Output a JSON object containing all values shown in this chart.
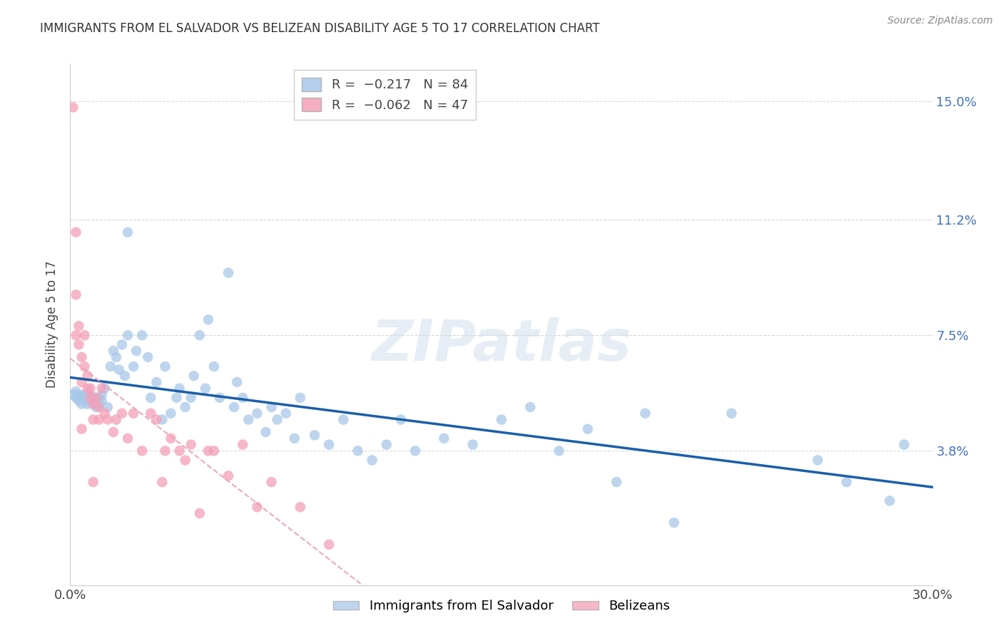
{
  "title": "IMMIGRANTS FROM EL SALVADOR VS BELIZEAN DISABILITY AGE 5 TO 17 CORRELATION CHART",
  "source": "Source: ZipAtlas.com",
  "ylabel": "Disability Age 5 to 17",
  "xlim": [
    0.0,
    0.3
  ],
  "ylim": [
    -0.005,
    0.162
  ],
  "ytick_labels": [
    "3.8%",
    "7.5%",
    "11.2%",
    "15.0%"
  ],
  "ytick_values": [
    0.038,
    0.075,
    0.112,
    0.15
  ],
  "color_blue": "#a8c8e8",
  "color_pink": "#f4a0b8",
  "color_blue_line": "#1a5fa8",
  "color_pink_line": "#e8a0b8",
  "watermark": "ZIPatlas",
  "blue_x": [
    0.001,
    0.002,
    0.002,
    0.003,
    0.003,
    0.004,
    0.004,
    0.005,
    0.005,
    0.006,
    0.006,
    0.007,
    0.007,
    0.008,
    0.008,
    0.009,
    0.009,
    0.01,
    0.01,
    0.011,
    0.011,
    0.012,
    0.013,
    0.014,
    0.015,
    0.016,
    0.017,
    0.018,
    0.019,
    0.02,
    0.022,
    0.023,
    0.025,
    0.027,
    0.028,
    0.03,
    0.032,
    0.033,
    0.035,
    0.037,
    0.038,
    0.04,
    0.042,
    0.043,
    0.045,
    0.047,
    0.048,
    0.05,
    0.052,
    0.055,
    0.057,
    0.058,
    0.06,
    0.062,
    0.065,
    0.068,
    0.07,
    0.072,
    0.075,
    0.078,
    0.08,
    0.085,
    0.09,
    0.095,
    0.1,
    0.105,
    0.11,
    0.115,
    0.12,
    0.13,
    0.14,
    0.15,
    0.16,
    0.17,
    0.18,
    0.19,
    0.2,
    0.21,
    0.23,
    0.26,
    0.27,
    0.285,
    0.29,
    0.02
  ],
  "blue_y": [
    0.056,
    0.055,
    0.057,
    0.054,
    0.056,
    0.053,
    0.055,
    0.054,
    0.056,
    0.053,
    0.055,
    0.054,
    0.056,
    0.053,
    0.055,
    0.054,
    0.052,
    0.055,
    0.053,
    0.056,
    0.054,
    0.058,
    0.052,
    0.065,
    0.07,
    0.068,
    0.064,
    0.072,
    0.062,
    0.075,
    0.065,
    0.07,
    0.075,
    0.068,
    0.055,
    0.06,
    0.048,
    0.065,
    0.05,
    0.055,
    0.058,
    0.052,
    0.055,
    0.062,
    0.075,
    0.058,
    0.08,
    0.065,
    0.055,
    0.095,
    0.052,
    0.06,
    0.055,
    0.048,
    0.05,
    0.044,
    0.052,
    0.048,
    0.05,
    0.042,
    0.055,
    0.043,
    0.04,
    0.048,
    0.038,
    0.035,
    0.04,
    0.048,
    0.038,
    0.042,
    0.04,
    0.048,
    0.052,
    0.038,
    0.045,
    0.028,
    0.05,
    0.015,
    0.05,
    0.035,
    0.028,
    0.022,
    0.04,
    0.108
  ],
  "pink_x": [
    0.001,
    0.002,
    0.002,
    0.003,
    0.003,
    0.004,
    0.004,
    0.005,
    0.005,
    0.006,
    0.006,
    0.007,
    0.007,
    0.008,
    0.008,
    0.009,
    0.01,
    0.01,
    0.011,
    0.012,
    0.013,
    0.015,
    0.016,
    0.018,
    0.02,
    0.022,
    0.025,
    0.028,
    0.03,
    0.032,
    0.033,
    0.035,
    0.038,
    0.04,
    0.042,
    0.045,
    0.048,
    0.05,
    0.055,
    0.06,
    0.065,
    0.07,
    0.08,
    0.09,
    0.002,
    0.004,
    0.008
  ],
  "pink_y": [
    0.148,
    0.088,
    0.108,
    0.072,
    0.078,
    0.068,
    0.06,
    0.075,
    0.065,
    0.058,
    0.062,
    0.055,
    0.058,
    0.053,
    0.048,
    0.055,
    0.052,
    0.048,
    0.058,
    0.05,
    0.048,
    0.044,
    0.048,
    0.05,
    0.042,
    0.05,
    0.038,
    0.05,
    0.048,
    0.028,
    0.038,
    0.042,
    0.038,
    0.035,
    0.04,
    0.018,
    0.038,
    0.038,
    0.03,
    0.04,
    0.02,
    0.028,
    0.02,
    0.008,
    0.075,
    0.045,
    0.028
  ],
  "background_color": "#ffffff",
  "grid_color": "#d8d8d8"
}
